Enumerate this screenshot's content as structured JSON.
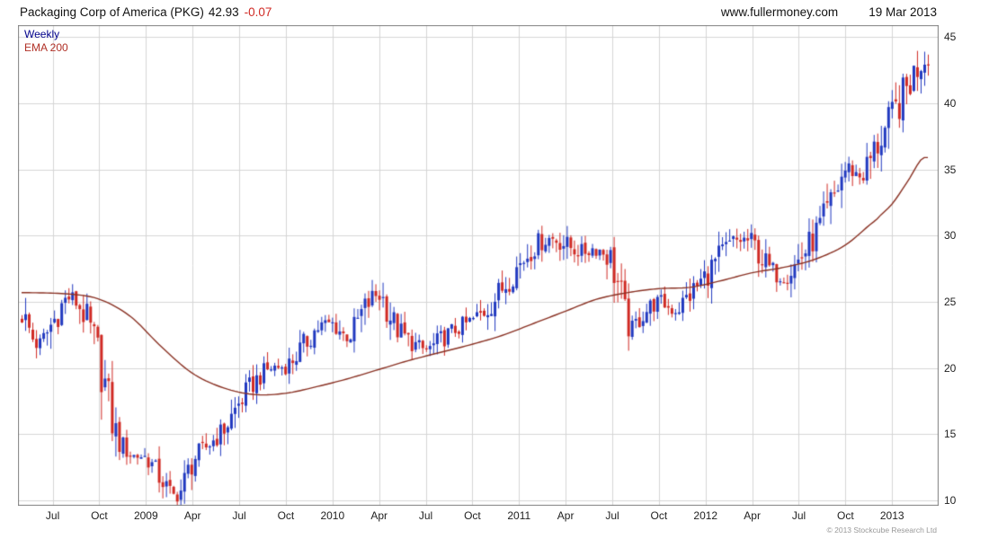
{
  "header": {
    "title": "Packaging Corp of America (PKG)",
    "price": "42.93",
    "change": "-0.07",
    "site": "www.fullermoney.com",
    "date": "19 Mar 2013"
  },
  "legend": {
    "timeframe": "Weekly",
    "overlay": "EMA 200"
  },
  "footer": {
    "copyright": "© 2013 Stockcube Research Ltd"
  },
  "chart_data": {
    "type": "candlestick",
    "title": "Packaging Corp of America (PKG) weekly with 200-week EMA",
    "timeframe": "weekly",
    "last_close": 42.93,
    "change": -0.07,
    "ylim": [
      9.6,
      45.9
    ],
    "y_ticks": [
      10,
      15,
      20,
      25,
      30,
      35,
      40,
      45
    ],
    "x_ticks": [
      {
        "label": "Jul",
        "m": 2
      },
      {
        "label": "Oct",
        "m": 5
      },
      {
        "label": "2009",
        "m": 8
      },
      {
        "label": "Apr",
        "m": 11
      },
      {
        "label": "Jul",
        "m": 14
      },
      {
        "label": "Oct",
        "m": 17
      },
      {
        "label": "2010",
        "m": 20
      },
      {
        "label": "Apr",
        "m": 23
      },
      {
        "label": "Jul",
        "m": 26
      },
      {
        "label": "Oct",
        "m": 29
      },
      {
        "label": "2011",
        "m": 32
      },
      {
        "label": "Apr",
        "m": 35
      },
      {
        "label": "Jul",
        "m": 38
      },
      {
        "label": "Oct",
        "m": 41
      },
      {
        "label": "2012",
        "m": 44
      },
      {
        "label": "Apr",
        "m": 47
      },
      {
        "label": "Jul",
        "m": 50
      },
      {
        "label": "Oct",
        "m": 53
      },
      {
        "label": "2013",
        "m": 56
      }
    ],
    "month_span": 58.3,
    "weeks": 252,
    "colors": {
      "up": "#2139c0",
      "down": "#d02a24",
      "ema": "#8a3224",
      "grid": "#d6d6d6",
      "border": "#808080"
    },
    "price_anchors": [
      [
        0,
        24.0
      ],
      [
        1,
        21.8
      ],
      [
        2,
        23.5
      ],
      [
        3,
        25.3
      ],
      [
        4,
        24.0
      ],
      [
        5,
        20.5
      ],
      [
        6,
        15.2
      ],
      [
        7,
        13.5
      ],
      [
        8,
        13.2
      ],
      [
        9,
        11.5
      ],
      [
        10,
        10.4
      ],
      [
        11,
        13.0
      ],
      [
        12,
        14.2
      ],
      [
        13,
        15.4
      ],
      [
        14,
        17.4
      ],
      [
        15,
        19.0
      ],
      [
        16,
        20.0
      ],
      [
        17,
        20.2
      ],
      [
        18,
        21.5
      ],
      [
        19,
        23.0
      ],
      [
        20,
        23.3
      ],
      [
        21,
        22.4
      ],
      [
        22,
        24.4
      ],
      [
        23,
        25.5
      ],
      [
        24,
        23.2
      ],
      [
        25,
        22.0
      ],
      [
        26,
        21.4
      ],
      [
        27,
        22.2
      ],
      [
        28,
        23.0
      ],
      [
        29,
        23.6
      ],
      [
        30,
        24.6
      ],
      [
        31,
        26.2
      ],
      [
        32,
        27.8
      ],
      [
        33,
        29.2
      ],
      [
        34,
        29.8
      ],
      [
        35,
        29.3
      ],
      [
        36,
        28.8
      ],
      [
        37,
        29.0
      ],
      [
        38,
        27.8
      ],
      [
        39,
        23.2
      ],
      [
        40,
        24.2
      ],
      [
        41,
        25.0
      ],
      [
        42,
        24.4
      ],
      [
        43,
        25.6
      ],
      [
        44,
        27.0
      ],
      [
        45,
        28.6
      ],
      [
        46,
        29.6
      ],
      [
        47,
        29.4
      ],
      [
        48,
        27.6
      ],
      [
        49,
        27.0
      ],
      [
        50,
        28.2
      ],
      [
        51,
        30.0
      ],
      [
        52,
        32.2
      ],
      [
        53,
        35.0
      ],
      [
        54,
        34.6
      ],
      [
        55,
        36.8
      ],
      [
        56,
        39.0
      ],
      [
        57,
        41.3
      ],
      [
        58,
        43.4
      ]
    ],
    "ema_anchors": [
      [
        0,
        25.7
      ],
      [
        3,
        25.6
      ],
      [
        5,
        25.2
      ],
      [
        7,
        23.9
      ],
      [
        9,
        21.6
      ],
      [
        11,
        19.6
      ],
      [
        13,
        18.5
      ],
      [
        15,
        18.0
      ],
      [
        17,
        18.1
      ],
      [
        19,
        18.6
      ],
      [
        21,
        19.2
      ],
      [
        23,
        19.9
      ],
      [
        25,
        20.6
      ],
      [
        27,
        21.2
      ],
      [
        29,
        21.8
      ],
      [
        31,
        22.5
      ],
      [
        33,
        23.4
      ],
      [
        35,
        24.3
      ],
      [
        37,
        25.2
      ],
      [
        39,
        25.7
      ],
      [
        41,
        26.0
      ],
      [
        43,
        26.1
      ],
      [
        45,
        26.6
      ],
      [
        47,
        27.2
      ],
      [
        49,
        27.6
      ],
      [
        51,
        28.2
      ],
      [
        53,
        29.3
      ],
      [
        55,
        31.2
      ],
      [
        56,
        32.4
      ],
      [
        57,
        34.1
      ],
      [
        58,
        35.9
      ]
    ]
  }
}
